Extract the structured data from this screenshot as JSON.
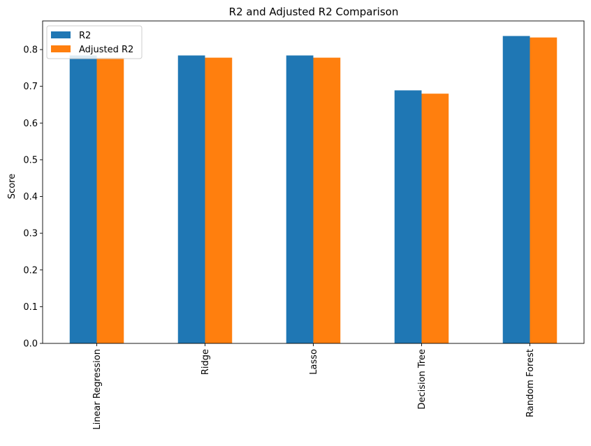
{
  "chart_data": {
    "type": "bar",
    "title": "R2 and Adjusted R2 Comparison",
    "xlabel": "",
    "ylabel": "Score",
    "categories": [
      "Linear Regression",
      "Ridge",
      "Lasso",
      "Decision Tree",
      "Random Forest"
    ],
    "series": [
      {
        "name": "R2",
        "color": "#1f77b4",
        "values": [
          0.784,
          0.784,
          0.784,
          0.689,
          0.837
        ]
      },
      {
        "name": "Adjusted R2",
        "color": "#ff7f0e",
        "values": [
          0.778,
          0.778,
          0.778,
          0.68,
          0.833
        ]
      }
    ],
    "ylim": [
      0,
      0.878
    ],
    "yticks": [
      "0.0",
      "0.1",
      "0.2",
      "0.3",
      "0.4",
      "0.5",
      "0.6",
      "0.7",
      "0.8"
    ],
    "grid": false,
    "legend_position": "top-left",
    "x_tick_rotation": "vertical"
  }
}
